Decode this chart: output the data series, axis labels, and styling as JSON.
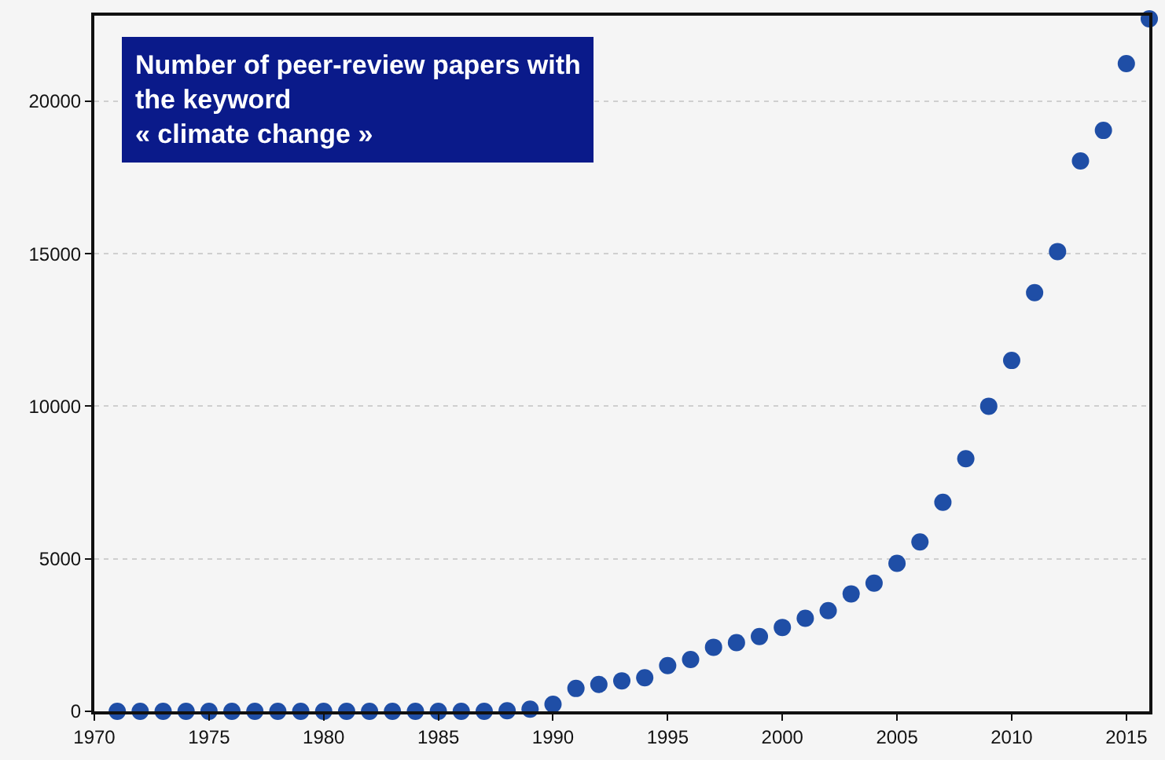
{
  "chart_data": {
    "type": "scatter",
    "title": "Number of peer-review papers with\nthe keyword\n« climate change »",
    "x": [
      1971,
      1972,
      1973,
      1974,
      1975,
      1976,
      1977,
      1978,
      1979,
      1980,
      1981,
      1982,
      1983,
      1984,
      1985,
      1986,
      1987,
      1988,
      1989,
      1990,
      1991,
      1992,
      1993,
      1994,
      1995,
      1996,
      1997,
      1998,
      1999,
      2000,
      2001,
      2002,
      2003,
      2004,
      2005,
      2006,
      2007,
      2008,
      2009,
      2010,
      2011,
      2012,
      2013,
      2014,
      2015,
      2016
    ],
    "series": [
      {
        "color": "#1f4ea6",
        "values": [
          0,
          0,
          0,
          0,
          0,
          0,
          0,
          0,
          0,
          0,
          0,
          0,
          0,
          0,
          0,
          0,
          0,
          20,
          70,
          230,
          750,
          880,
          1000,
          1100,
          1500,
          1700,
          2100,
          2250,
          2450,
          2750,
          3050,
          3300,
          3850,
          4200,
          4850,
          5550,
          6850,
          8280,
          10000,
          11500,
          13720,
          15070,
          18040,
          19040,
          21230,
          22700
        ]
      }
    ],
    "xlim": [
      1970,
      2016
    ],
    "xticks": [
      1970,
      1975,
      1980,
      1985,
      1990,
      1995,
      2000,
      2005,
      2010,
      2015
    ],
    "ylim": [
      0,
      22800
    ],
    "yticks": [
      0,
      5000,
      10000,
      15000,
      20000
    ],
    "grid": "y",
    "marker": "circle"
  }
}
